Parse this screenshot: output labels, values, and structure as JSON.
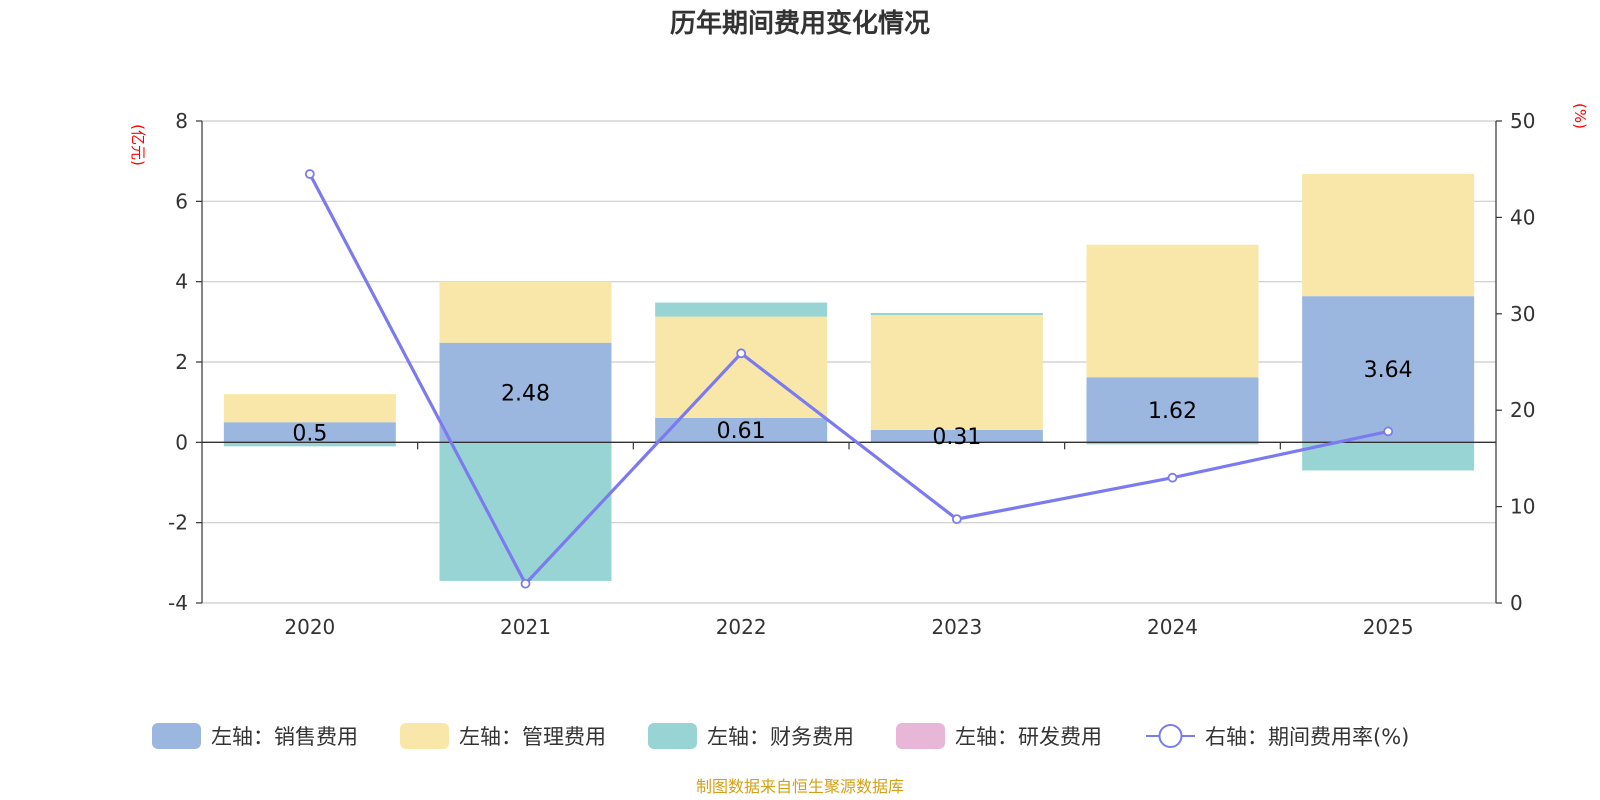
{
  "chart_data": {
    "type": "bar",
    "title": "历年期间费用变化情况",
    "categories": [
      "2020",
      "2021",
      "2022",
      "2023",
      "2024",
      "2025"
    ],
    "left_axis": {
      "unit": "(亿元)",
      "ylim": [
        -4,
        8
      ],
      "ticks": [
        "8",
        "6",
        "4",
        "2",
        "0",
        "-2",
        "-4"
      ]
    },
    "right_axis": {
      "unit": "(%)",
      "ylim": [
        0,
        50
      ],
      "ticks": [
        "50",
        "40",
        "30",
        "20",
        "10",
        "0"
      ]
    },
    "stacked": true,
    "series": [
      {
        "name": "左轴：销售费用",
        "axis": "left",
        "kind": "bar",
        "color": "#9bb7e0",
        "values": [
          0.5,
          2.48,
          0.61,
          0.31,
          1.62,
          3.64
        ],
        "labels": [
          "0.5",
          "2.48",
          "0.61",
          "0.31",
          "1.62",
          "3.64"
        ]
      },
      {
        "name": "左轴：管理费用",
        "axis": "left",
        "kind": "bar",
        "color": "#f8e7a8",
        "values": [
          0.7,
          1.52,
          2.52,
          2.86,
          3.3,
          3.04
        ]
      },
      {
        "name": "左轴：财务费用",
        "axis": "left",
        "kind": "bar",
        "color": "#98d4d4",
        "values": [
          -0.1,
          -3.45,
          0.35,
          0.05,
          -0.05,
          -0.7
        ]
      },
      {
        "name": "左轴：研发费用",
        "axis": "left",
        "kind": "bar",
        "color": "#e8b7d8",
        "values": [
          0,
          0,
          0,
          0,
          0,
          0
        ]
      },
      {
        "name": "右轴：期间费用率(%)",
        "axis": "right",
        "kind": "line",
        "color": "#7b7bef",
        "values": [
          44.5,
          2.0,
          25.9,
          8.7,
          13.0,
          17.8
        ]
      }
    ],
    "legend_position": "bottom",
    "grid": true
  },
  "footer": {
    "source": "制图数据来自恒生聚源数据库"
  }
}
